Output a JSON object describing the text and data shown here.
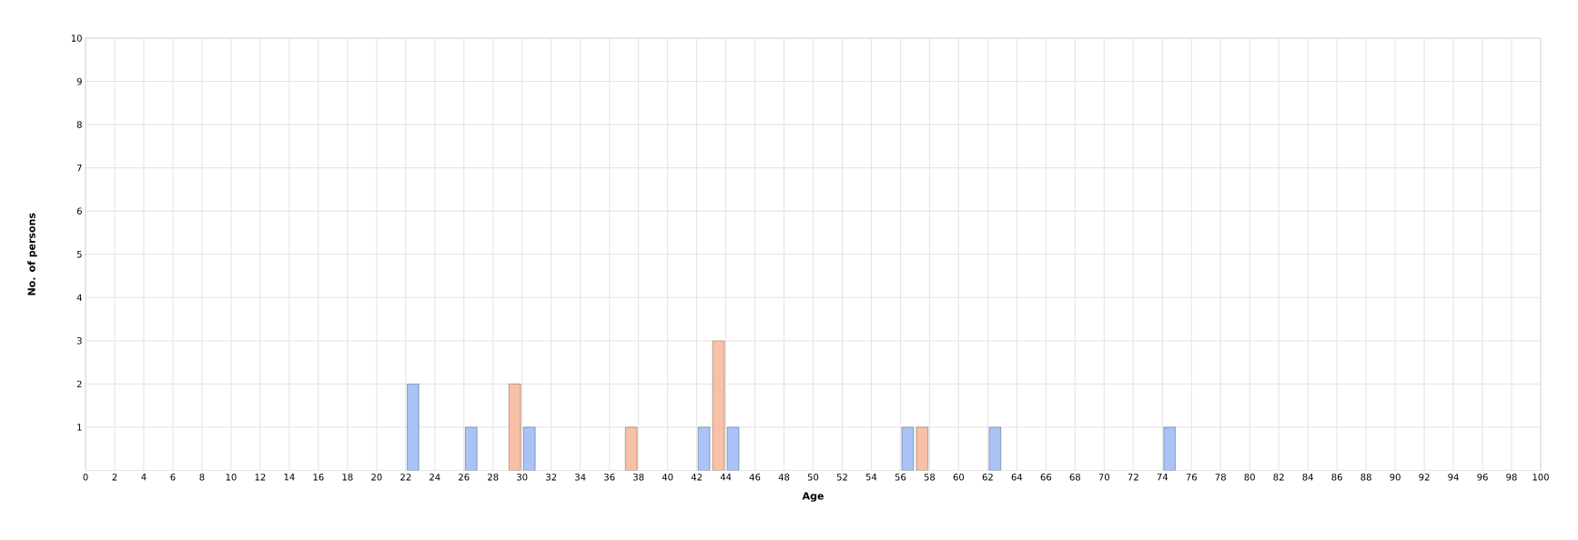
{
  "chart_data": {
    "type": "bar",
    "xlabel": "Age",
    "ylabel": "No. of persons",
    "xlim": [
      0,
      100
    ],
    "ylim": [
      0,
      10
    ],
    "xticks": [
      0,
      2,
      4,
      6,
      8,
      10,
      12,
      14,
      16,
      18,
      20,
      22,
      24,
      26,
      28,
      30,
      32,
      34,
      36,
      38,
      40,
      42,
      44,
      46,
      48,
      50,
      52,
      54,
      56,
      58,
      60,
      62,
      64,
      66,
      68,
      70,
      72,
      74,
      76,
      78,
      80,
      82,
      84,
      86,
      88,
      90,
      92,
      94,
      96,
      98,
      100
    ],
    "yticks": [
      1,
      2,
      3,
      4,
      5,
      6,
      7,
      8,
      9,
      10
    ],
    "grid": true,
    "series": [
      {
        "color": "#a9c3f7",
        "x": [
          22.5,
          26.5,
          30.5,
          42.5,
          44.5,
          56.5,
          62.5,
          74.5
        ],
        "values": [
          2,
          1,
          1,
          1,
          1,
          1,
          1,
          1
        ]
      },
      {
        "color": "#f9c0a8",
        "x": [
          29.5,
          37.5,
          43.5,
          57.5
        ],
        "values": [
          2,
          1,
          3,
          1
        ]
      }
    ]
  }
}
